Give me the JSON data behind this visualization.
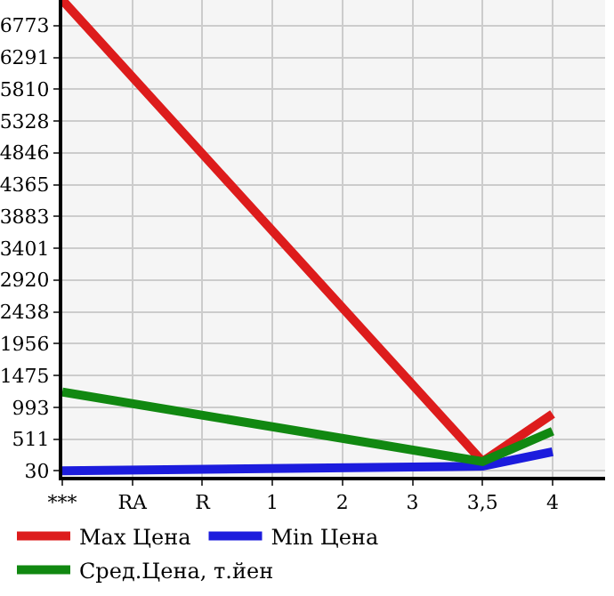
{
  "chart_data": {
    "type": "line",
    "categories": [
      "***",
      "RA",
      "R",
      "1",
      "2",
      "3",
      "3,5",
      "4"
    ],
    "series": [
      {
        "name": "Max Цена",
        "color": "#dd1c1c",
        "values": [
          7160,
          null,
          null,
          null,
          null,
          null,
          170,
          890
        ]
      },
      {
        "name": "Min Цена",
        "color": "#1c1cdd",
        "values": [
          30,
          null,
          null,
          null,
          null,
          null,
          100,
          320
        ]
      },
      {
        "name": "Сред.Цена, т.йен",
        "color": "#118811",
        "values": [
          1225,
          null,
          null,
          null,
          null,
          null,
          170,
          630
        ]
      }
    ],
    "ylim": [
      -60,
      7160
    ],
    "yticks": [
      30,
      511,
      993,
      1475,
      1956,
      2438,
      2920,
      3401,
      3883,
      4365,
      4846,
      5328,
      5810,
      6291,
      6773
    ],
    "grid": true,
    "legend": "bottom",
    "marker": "none",
    "line_style": "solid"
  }
}
